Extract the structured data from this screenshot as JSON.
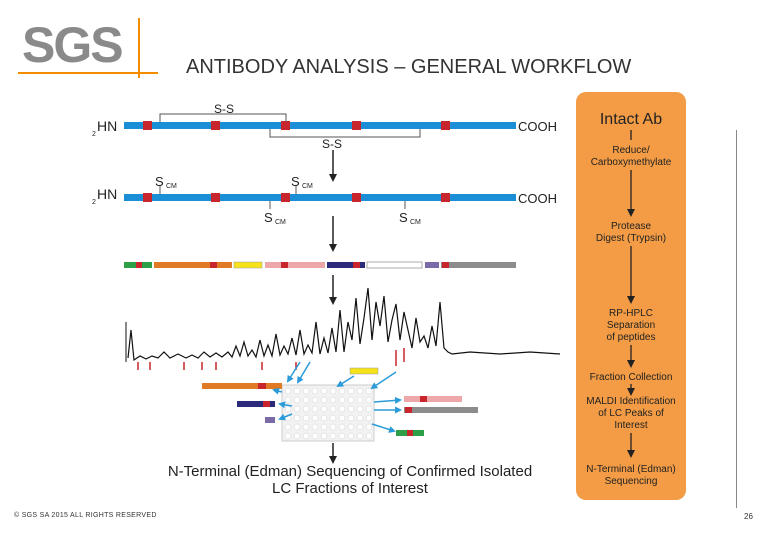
{
  "logo": {
    "text": "SGS"
  },
  "title": "ANTIBODY ANALYSIS – GENERAL WORKFLOW",
  "footer": "© SGS SA 2015 ALL RIGHTS RESERVED",
  "page_number": "26",
  "chain": {
    "n_terminus": "HN",
    "n_subscript": "2",
    "c_terminus": "COOH",
    "disulfide": "S-S",
    "scm_s": "S",
    "scm_sub": "CM"
  },
  "workflow": {
    "header": "Intact Ab",
    "steps": [
      [
        "Reduce/",
        "Carboxymethylate"
      ],
      [
        "Protease",
        "Digest (Trypsin)"
      ],
      [
        "RP-HPLC",
        "Separation",
        "of peptides"
      ],
      [
        "Fraction Collection"
      ],
      [
        "MALDI Identification",
        "of LC Peaks of",
        "Interest"
      ],
      [
        "N-Terminal (Edman)",
        "Sequencing"
      ]
    ]
  },
  "bottom_caption": [
    "N-Terminal (Edman) Sequencing of Confirmed Isolated",
    "LC Fractions of Interest"
  ],
  "colors": {
    "chain_blue": "#1a8fd6",
    "site_red": "#c8252c",
    "panel_orange": "#f39c45",
    "accent_orange": "#f28c00",
    "arrow_blue": "#2a9bd8"
  }
}
